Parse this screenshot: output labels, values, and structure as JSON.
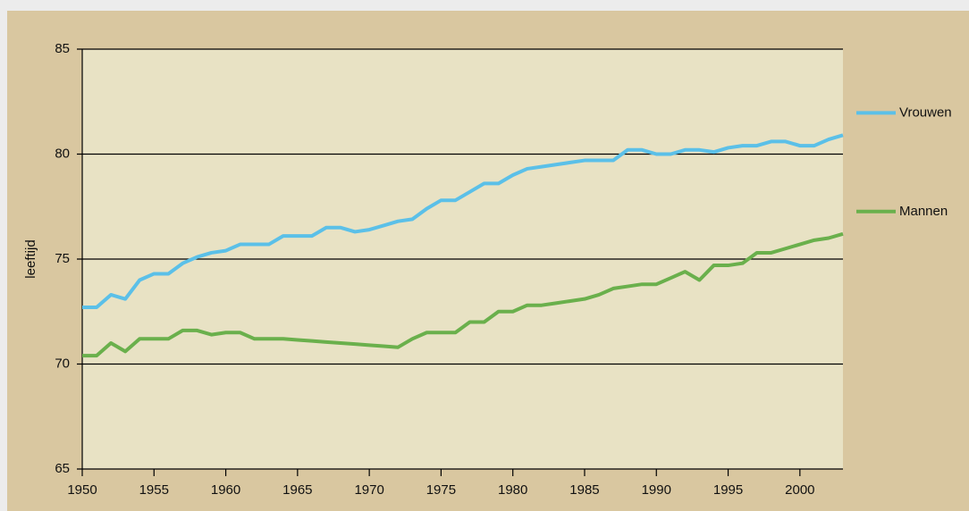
{
  "chart_data": {
    "type": "line",
    "y_label": "leeftijd",
    "x": [
      1950,
      1951,
      1952,
      1953,
      1954,
      1955,
      1956,
      1957,
      1958,
      1959,
      1960,
      1961,
      1962,
      1963,
      1964,
      1965,
      1966,
      1967,
      1968,
      1969,
      1970,
      1971,
      1972,
      1973,
      1974,
      1975,
      1976,
      1977,
      1978,
      1979,
      1980,
      1981,
      1982,
      1983,
      1984,
      1985,
      1986,
      1987,
      1988,
      1989,
      1990,
      1991,
      1992,
      1993,
      1994,
      1995,
      1996,
      1997,
      1998,
      1999,
      2000,
      2001,
      2002,
      2003
    ],
    "series": [
      {
        "name": "Vrouwen",
        "color": "#5bc0e8",
        "values": [
          72.7,
          72.7,
          73.3,
          73.1,
          74.0,
          74.3,
          74.3,
          74.8,
          75.1,
          75.3,
          75.4,
          75.7,
          75.7,
          75.7,
          76.1,
          76.1,
          76.1,
          76.5,
          76.5,
          76.3,
          76.4,
          76.6,
          76.8,
          76.9,
          77.4,
          77.8,
          77.8,
          78.2,
          78.6,
          78.6,
          79.0,
          79.3,
          79.4,
          79.5,
          79.6,
          79.7,
          79.7,
          79.7,
          80.2,
          80.2,
          80.0,
          80.0,
          80.2,
          80.2,
          80.1,
          80.3,
          80.4,
          80.4,
          80.6,
          80.6,
          80.4,
          80.4,
          80.7,
          80.9
        ]
      },
      {
        "name": "Mannen",
        "color": "#6ab04c",
        "values": [
          70.4,
          70.4,
          71.0,
          70.6,
          71.2,
          71.2,
          71.2,
          71.6,
          71.6,
          71.4,
          71.5,
          71.5,
          71.2,
          71.2,
          71.2,
          71.15,
          71.1,
          71.05,
          71.0,
          70.95,
          70.9,
          70.85,
          70.8,
          71.2,
          71.5,
          71.5,
          71.5,
          72.0,
          72.0,
          72.5,
          72.5,
          72.8,
          72.8,
          72.9,
          73.0,
          73.1,
          73.3,
          73.6,
          73.7,
          73.8,
          73.8,
          74.1,
          74.4,
          74.0,
          74.7,
          74.7,
          74.8,
          75.3,
          75.3,
          75.5,
          75.7,
          75.9,
          76.0,
          76.2
        ]
      }
    ],
    "xlim": [
      1950,
      2003
    ],
    "xticks": [
      1950,
      1955,
      1960,
      1965,
      1970,
      1975,
      1980,
      1985,
      1990,
      1995,
      2000
    ],
    "ylim": [
      65,
      85
    ],
    "yticks": [
      65,
      70,
      75,
      80,
      85
    ],
    "grid": true,
    "legend": "right"
  }
}
